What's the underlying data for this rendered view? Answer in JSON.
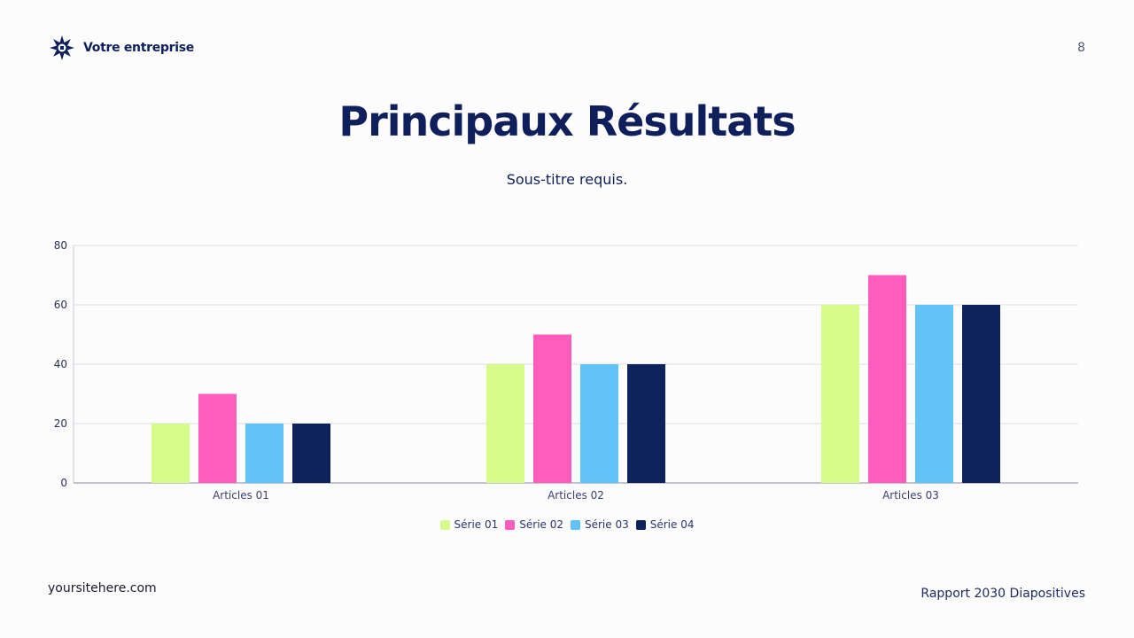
{
  "header": {
    "company": "Votre entreprise",
    "page_number": "8"
  },
  "slide": {
    "title": "Principaux Résultats",
    "subtitle": "Sous-titre requis."
  },
  "footer": {
    "website": "yoursitehere.com",
    "report": "Rapport 2030 Diapositives"
  },
  "colors": {
    "navy": "#0f1f5c",
    "lime": "#d6fb8a",
    "pink": "#ff5cbc",
    "sky": "#61c3f7",
    "dark": "#0e225c"
  },
  "chart_data": {
    "type": "bar",
    "title": "",
    "xlabel": "",
    "ylabel": "",
    "ylim": [
      0,
      80
    ],
    "yticks": [
      0,
      20,
      40,
      60,
      80
    ],
    "grid": true,
    "legend_position": "bottom",
    "categories": [
      "Articles 01",
      "Articles 02",
      "Articles 03"
    ],
    "series": [
      {
        "name": "Série 01",
        "color": "#d6fb8a",
        "values": [
          20,
          40,
          60
        ]
      },
      {
        "name": "Série 02",
        "color": "#ff5cbc",
        "values": [
          30,
          50,
          70
        ]
      },
      {
        "name": "Série 03",
        "color": "#61c3f7",
        "values": [
          20,
          40,
          60
        ]
      },
      {
        "name": "Série 04",
        "color": "#0e225c",
        "values": [
          20,
          40,
          60
        ]
      }
    ]
  }
}
